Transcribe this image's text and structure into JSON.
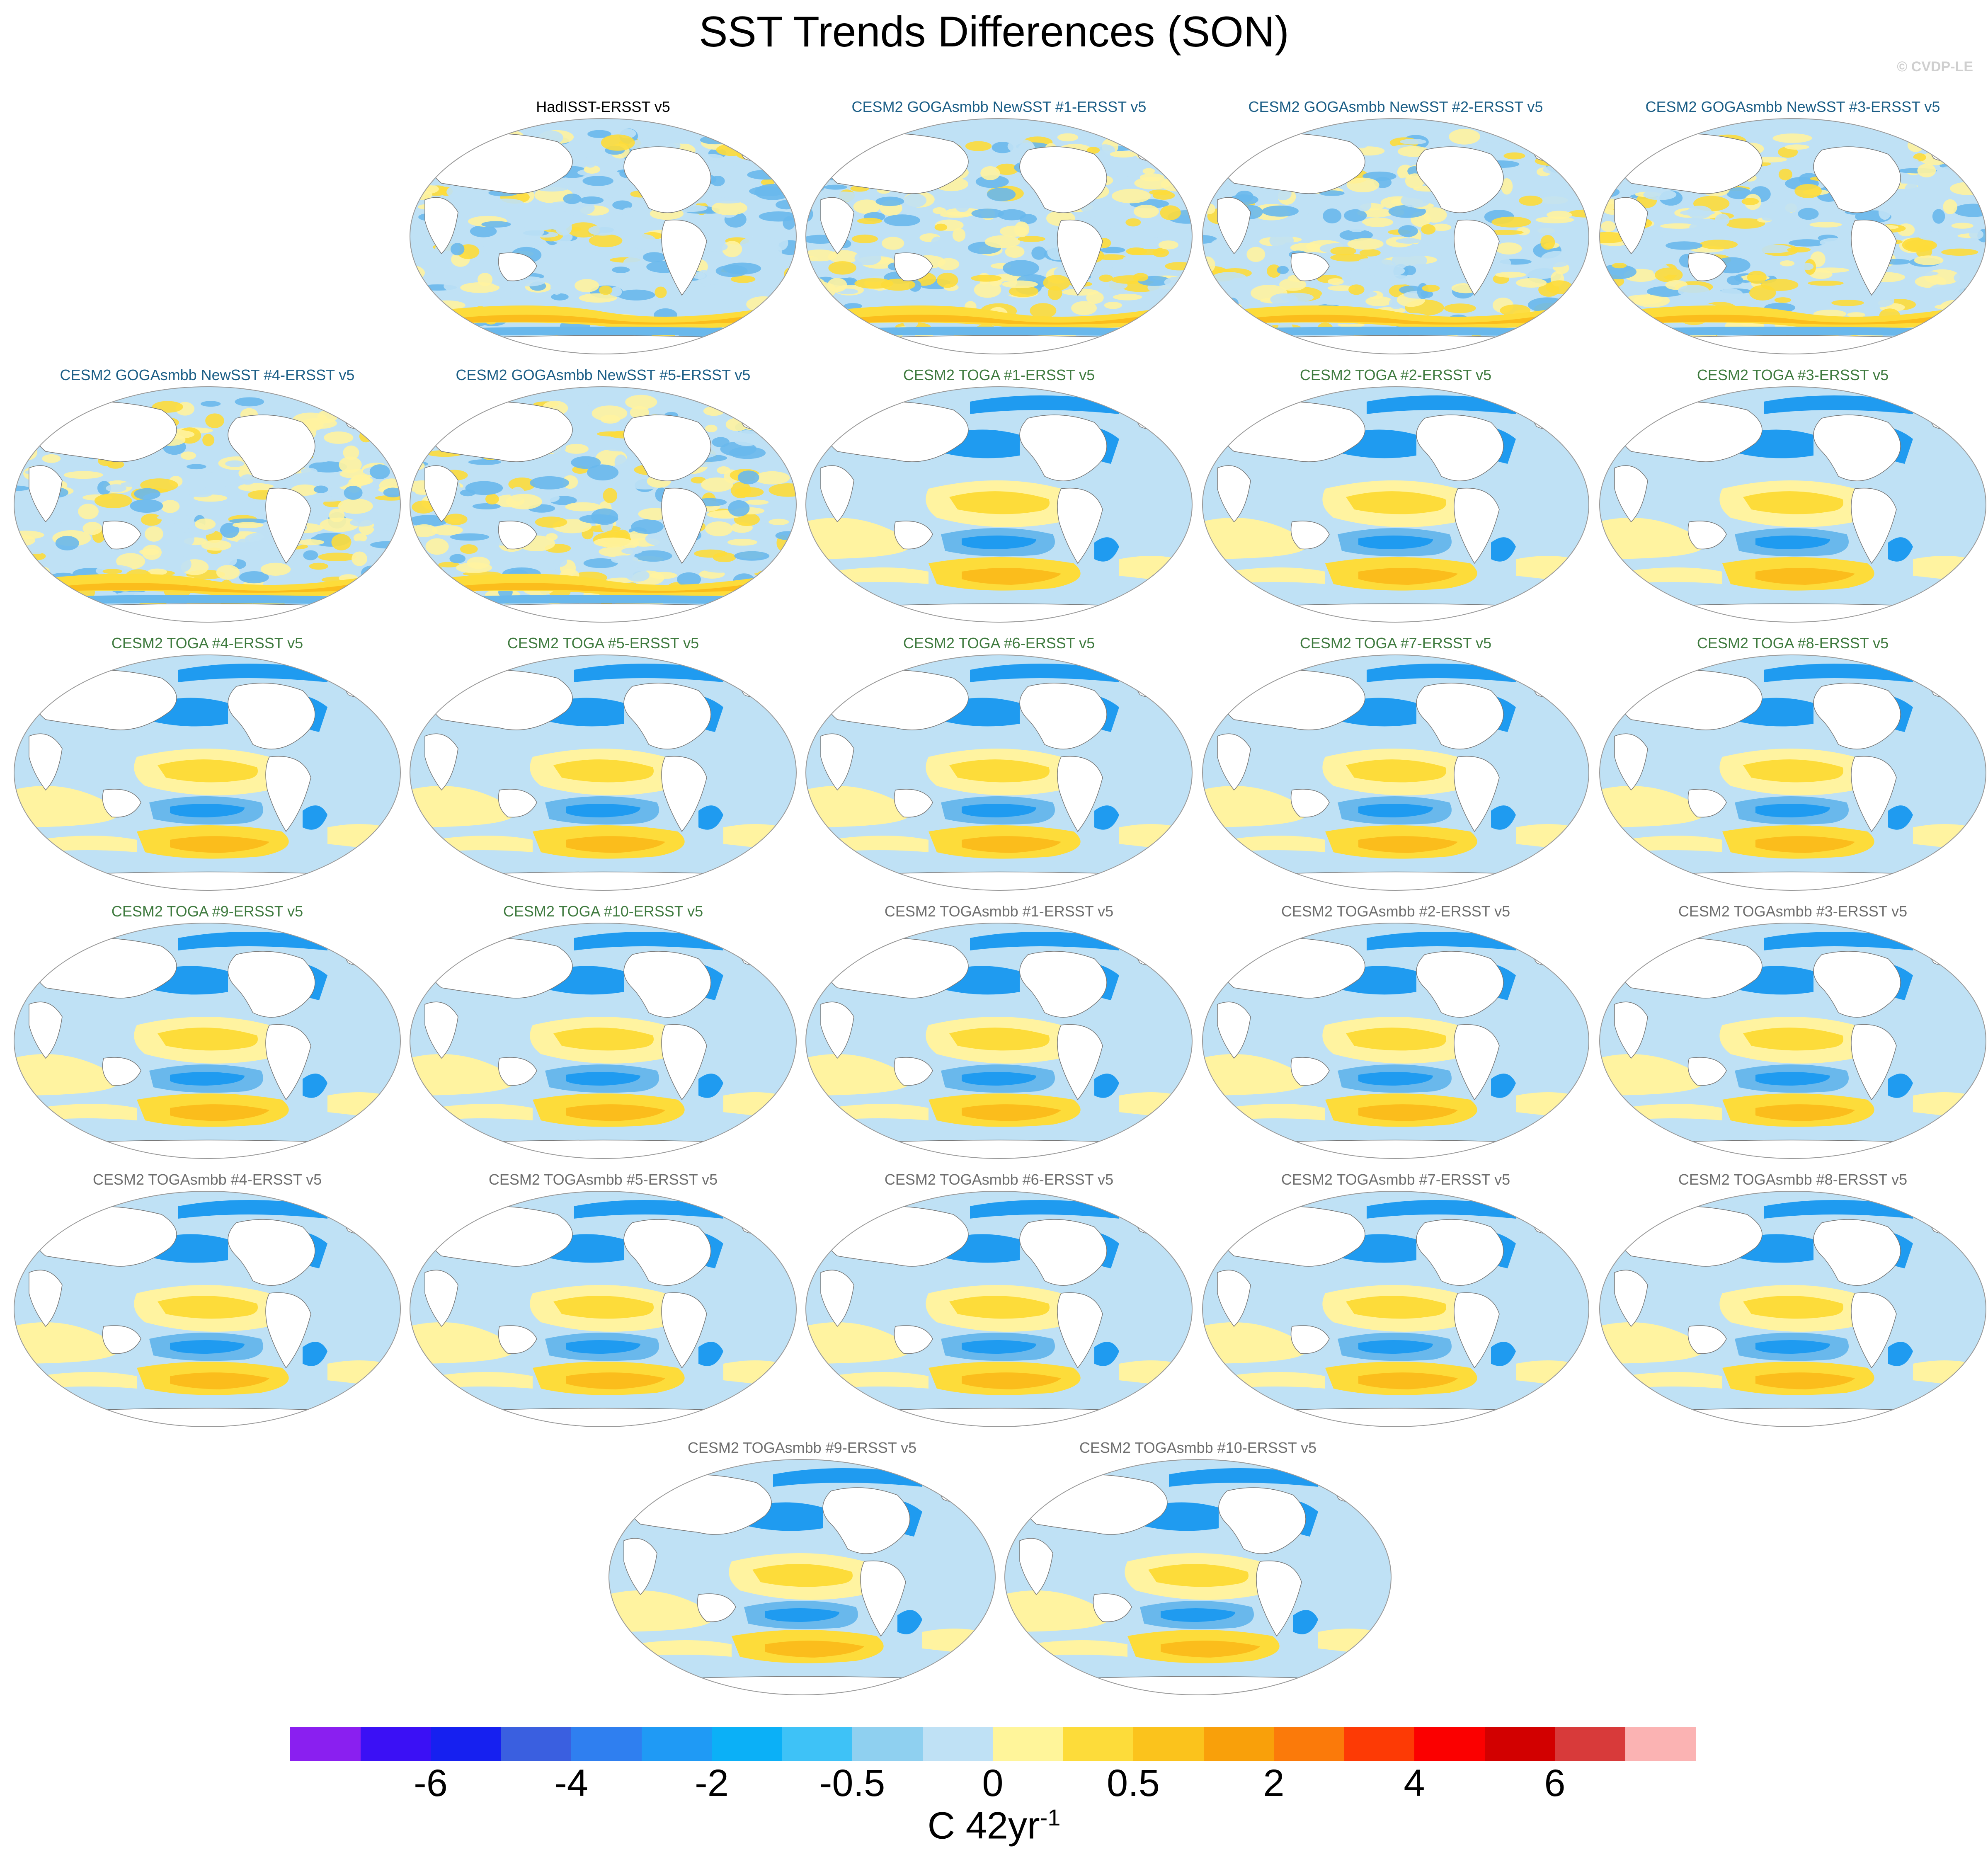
{
  "title": "SST Trends Differences (SON)",
  "credit": "© CVDP-LE",
  "colors": {
    "group_obs": "#000000",
    "group_goga": "#1b5e86",
    "group_toga": "#3e7a3e",
    "group_togasmbb": "#6e6e6e",
    "ocean_light_blue": "#bfe1f5",
    "ocean_blue": "#69b8ec",
    "ocean_deep_blue": "#1f9bf0",
    "warm_light": "#fff3a0",
    "warm_yellow": "#fddc3a",
    "warm_orange": "#fbbd1c",
    "land": "#ffffff",
    "coast": "#777777"
  },
  "panels": [
    {
      "title": "HadISST-ERSST v5",
      "group": "obs",
      "row": 0,
      "col": 1
    },
    {
      "title": "CESM2 GOGAsmbb NewSST #1-ERSST v5",
      "group": "goga",
      "row": 0,
      "col": 2
    },
    {
      "title": "CESM2 GOGAsmbb NewSST #2-ERSST v5",
      "group": "goga",
      "row": 0,
      "col": 3
    },
    {
      "title": "CESM2 GOGAsmbb NewSST #3-ERSST v5",
      "group": "goga",
      "row": 0,
      "col": 4
    },
    {
      "title": "CESM2 GOGAsmbb NewSST #4-ERSST v5",
      "group": "goga",
      "row": 1,
      "col": 0
    },
    {
      "title": "CESM2 GOGAsmbb NewSST #5-ERSST v5",
      "group": "goga",
      "row": 1,
      "col": 1
    },
    {
      "title": "CESM2 TOGA #1-ERSST v5",
      "group": "toga",
      "row": 1,
      "col": 2
    },
    {
      "title": "CESM2 TOGA #2-ERSST v5",
      "group": "toga",
      "row": 1,
      "col": 3
    },
    {
      "title": "CESM2 TOGA #3-ERSST v5",
      "group": "toga",
      "row": 1,
      "col": 4
    },
    {
      "title": "CESM2 TOGA #4-ERSST v5",
      "group": "toga",
      "row": 2,
      "col": 0
    },
    {
      "title": "CESM2 TOGA #5-ERSST v5",
      "group": "toga",
      "row": 2,
      "col": 1
    },
    {
      "title": "CESM2 TOGA #6-ERSST v5",
      "group": "toga",
      "row": 2,
      "col": 2
    },
    {
      "title": "CESM2 TOGA #7-ERSST v5",
      "group": "toga",
      "row": 2,
      "col": 3
    },
    {
      "title": "CESM2 TOGA #8-ERSST v5",
      "group": "toga",
      "row": 2,
      "col": 4
    },
    {
      "title": "CESM2 TOGA #9-ERSST v5",
      "group": "toga",
      "row": 3,
      "col": 0
    },
    {
      "title": "CESM2 TOGA #10-ERSST v5",
      "group": "toga",
      "row": 3,
      "col": 1
    },
    {
      "title": "CESM2 TOGAsmbb #1-ERSST v5",
      "group": "togasmbb",
      "row": 3,
      "col": 2
    },
    {
      "title": "CESM2 TOGAsmbb #2-ERSST v5",
      "group": "togasmbb",
      "row": 3,
      "col": 3
    },
    {
      "title": "CESM2 TOGAsmbb #3-ERSST v5",
      "group": "togasmbb",
      "row": 3,
      "col": 4
    },
    {
      "title": "CESM2 TOGAsmbb #4-ERSST v5",
      "group": "togasmbb",
      "row": 4,
      "col": 0
    },
    {
      "title": "CESM2 TOGAsmbb #5-ERSST v5",
      "group": "togasmbb",
      "row": 4,
      "col": 1
    },
    {
      "title": "CESM2 TOGAsmbb #6-ERSST v5",
      "group": "togasmbb",
      "row": 4,
      "col": 2
    },
    {
      "title": "CESM2 TOGAsmbb #7-ERSST v5",
      "group": "togasmbb",
      "row": 4,
      "col": 3
    },
    {
      "title": "CESM2 TOGAsmbb #8-ERSST v5",
      "group": "togasmbb",
      "row": 4,
      "col": 4
    },
    {
      "title": "CESM2 TOGAsmbb #9-ERSST v5",
      "group": "togasmbb",
      "row": 5,
      "col": 0
    },
    {
      "title": "CESM2 TOGAsmbb #10-ERSST v5",
      "group": "togasmbb",
      "row": 5,
      "col": 1
    }
  ],
  "colorbar": {
    "colors": [
      "#8a1ff0",
      "#3b10f5",
      "#1620f0",
      "#3a5fe0",
      "#2f7ff0",
      "#1f9af5",
      "#0bb0f7",
      "#3ec2f7",
      "#8fd0f0",
      "#bfe1f5",
      "#fff59a",
      "#fddc3a",
      "#fbc31c",
      "#f9a00a",
      "#fb7a0a",
      "#fd3a05",
      "#fb0000",
      "#d20000",
      "#d83a3a",
      "#fbb3b3"
    ],
    "labels": [
      "-6",
      "-4",
      "-2",
      "-0.5",
      "0",
      "0.5",
      "2",
      "4",
      "6"
    ],
    "label_boundaries": [
      2,
      4,
      6,
      8,
      10,
      12,
      14,
      16,
      18
    ],
    "units_text": "C 42yr",
    "units_exponent": "-1"
  }
}
